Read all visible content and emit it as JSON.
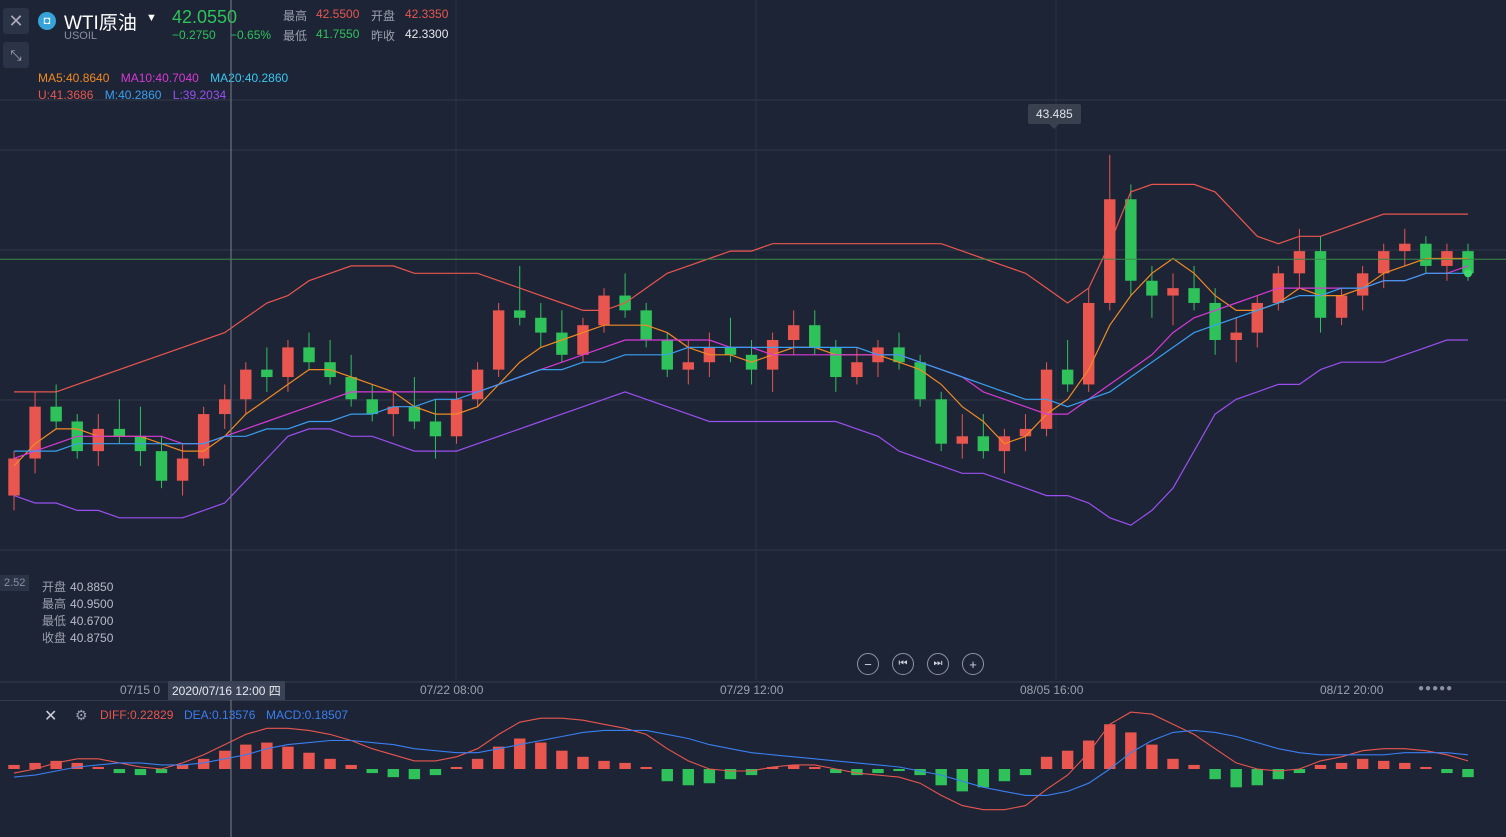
{
  "header": {
    "instrument": "WTI原油",
    "symbol": "USOIL",
    "price": "42.0550",
    "change": "−0.2750",
    "change_pct": "−0.65%",
    "stats": {
      "high_label": "最高",
      "high_value": "42.5500",
      "open_label": "开盘",
      "open_value": "42.3350",
      "low_label": "最低",
      "low_value": "41.7550",
      "prev_label": "昨收",
      "prev_value": "42.3300"
    }
  },
  "legend": {
    "ma5": "MA5:40.8640",
    "ma10": "MA10:40.7040",
    "ma20": "MA20:40.2860",
    "boll_u": "U:41.3686",
    "boll_m": "M:40.2860",
    "boll_l": "L:39.2034"
  },
  "hover_ohlc": {
    "open_label": "开盘",
    "open_value": "40.8850",
    "high_label": "最高",
    "high_value": "40.9500",
    "low_label": "最低",
    "low_value": "40.6700",
    "close_label": "收盘",
    "close_value": "40.8750"
  },
  "price_tag": "43.485",
  "left_axis_tag": "2.52",
  "crosshair_time": "2020/07/16 12:00 四",
  "x_axis": {
    "labels": [
      "07/15 0",
      "07/22 08:00",
      "07/29 12:00",
      "08/05 16:00",
      "08/12 20:00"
    ]
  },
  "macd_legend": {
    "diff": "DIFF:0.22829",
    "dea": "DEA:0.13576",
    "macd": "MACD:0.18507"
  },
  "colors": {
    "up": "#e8564f",
    "down": "#2fc25b",
    "ma5": "#f08a24",
    "ma10": "#d63ad6",
    "ma20": "#3a9ff0",
    "boll_u": "#e8564f",
    "boll_l": "#9a4ff0",
    "diff": "#e8564f",
    "dea": "#3a7ff0"
  },
  "icons": {
    "close": "close-icon",
    "shrink": "shrink-icon",
    "logo": "usoil-logo-icon",
    "zoom_out": "zoom-out-icon",
    "zoom_in": "zoom-in-icon",
    "prev": "step-back-icon",
    "next": "step-forward-icon",
    "settings": "settings-icon"
  },
  "chart_data": {
    "type": "candlestick",
    "title": "",
    "xlabel": "",
    "ylabel": "",
    "ylim": [
      38.2,
      43.6
    ],
    "x_tick_labels": [
      "07/15 0",
      "07/22 08:00",
      "07/29 12:00",
      "08/05 16:00",
      "08/12 20:00"
    ],
    "candles_ohlc": [
      [
        38.8,
        39.4,
        38.6,
        39.3
      ],
      [
        39.3,
        40.2,
        39.1,
        40.0
      ],
      [
        40.0,
        40.3,
        39.7,
        39.8
      ],
      [
        39.8,
        39.9,
        39.3,
        39.4
      ],
      [
        39.4,
        39.9,
        39.2,
        39.7
      ],
      [
        39.7,
        40.1,
        39.5,
        39.6
      ],
      [
        39.6,
        40.0,
        39.2,
        39.4
      ],
      [
        39.4,
        39.6,
        38.9,
        39.0
      ],
      [
        39.0,
        39.5,
        38.8,
        39.3
      ],
      [
        39.3,
        40.0,
        39.2,
        39.9
      ],
      [
        39.9,
        40.3,
        39.7,
        40.1
      ],
      [
        40.1,
        40.6,
        39.9,
        40.5
      ],
      [
        40.5,
        40.8,
        40.2,
        40.4
      ],
      [
        40.4,
        40.9,
        40.2,
        40.8
      ],
      [
        40.8,
        41.0,
        40.5,
        40.6
      ],
      [
        40.6,
        40.9,
        40.3,
        40.4
      ],
      [
        40.4,
        40.7,
        40.0,
        40.1
      ],
      [
        40.1,
        40.3,
        39.8,
        39.9
      ],
      [
        39.9,
        40.2,
        39.6,
        40.0
      ],
      [
        40.0,
        40.4,
        39.7,
        39.8
      ],
      [
        39.8,
        40.1,
        39.3,
        39.6
      ],
      [
        39.6,
        40.2,
        39.5,
        40.1
      ],
      [
        40.1,
        40.6,
        40.0,
        40.5
      ],
      [
        40.5,
        41.4,
        40.4,
        41.3
      ],
      [
        41.3,
        41.9,
        41.1,
        41.2
      ],
      [
        41.2,
        41.4,
        40.8,
        41.0
      ],
      [
        41.0,
        41.3,
        40.6,
        40.7
      ],
      [
        40.7,
        41.2,
        40.6,
        41.1
      ],
      [
        41.1,
        41.6,
        41.0,
        41.5
      ],
      [
        41.5,
        41.8,
        41.2,
        41.3
      ],
      [
        41.3,
        41.4,
        40.8,
        40.9
      ],
      [
        40.9,
        41.0,
        40.4,
        40.5
      ],
      [
        40.5,
        40.9,
        40.3,
        40.6
      ],
      [
        40.6,
        41.0,
        40.4,
        40.8
      ],
      [
        40.8,
        41.2,
        40.6,
        40.7
      ],
      [
        40.7,
        40.9,
        40.3,
        40.5
      ],
      [
        40.5,
        41.0,
        40.2,
        40.9
      ],
      [
        40.9,
        41.3,
        40.7,
        41.1
      ],
      [
        41.1,
        41.3,
        40.7,
        40.8
      ],
      [
        40.8,
        40.9,
        40.2,
        40.4
      ],
      [
        40.4,
        40.8,
        40.3,
        40.6
      ],
      [
        40.6,
        40.9,
        40.4,
        40.8
      ],
      [
        40.8,
        41.0,
        40.5,
        40.6
      ],
      [
        40.6,
        40.7,
        40.0,
        40.1
      ],
      [
        40.1,
        40.2,
        39.4,
        39.5
      ],
      [
        39.5,
        39.9,
        39.3,
        39.6
      ],
      [
        39.6,
        39.9,
        39.3,
        39.4
      ],
      [
        39.4,
        39.7,
        39.1,
        39.6
      ],
      [
        39.6,
        39.9,
        39.4,
        39.7
      ],
      [
        39.7,
        40.6,
        39.6,
        40.5
      ],
      [
        40.5,
        40.9,
        40.2,
        40.3
      ],
      [
        40.3,
        41.6,
        40.2,
        41.4
      ],
      [
        41.4,
        43.4,
        41.3,
        42.8
      ],
      [
        42.8,
        43.0,
        41.5,
        41.7
      ],
      [
        41.7,
        41.9,
        41.2,
        41.5
      ],
      [
        41.5,
        41.8,
        41.1,
        41.6
      ],
      [
        41.6,
        41.9,
        41.3,
        41.4
      ],
      [
        41.4,
        41.6,
        40.7,
        40.9
      ],
      [
        40.9,
        41.2,
        40.6,
        41.0
      ],
      [
        41.0,
        41.5,
        40.8,
        41.4
      ],
      [
        41.4,
        41.9,
        41.3,
        41.8
      ],
      [
        41.8,
        42.4,
        41.6,
        42.1
      ],
      [
        42.1,
        42.3,
        41.0,
        41.2
      ],
      [
        41.2,
        41.6,
        41.1,
        41.5
      ],
      [
        41.5,
        41.9,
        41.3,
        41.8
      ],
      [
        41.8,
        42.2,
        41.6,
        42.1
      ],
      [
        42.1,
        42.4,
        41.9,
        42.2
      ],
      [
        42.2,
        42.3,
        41.8,
        41.9
      ],
      [
        41.9,
        42.2,
        41.7,
        42.1
      ],
      [
        42.1,
        42.2,
        41.7,
        41.8
      ]
    ],
    "series": [
      {
        "name": "MA5",
        "values": [
          39.2,
          39.5,
          39.7,
          39.7,
          39.6,
          39.6,
          39.6,
          39.5,
          39.4,
          39.4,
          39.6,
          39.9,
          40.1,
          40.3,
          40.5,
          40.5,
          40.4,
          40.3,
          40.2,
          40.0,
          39.9,
          39.9,
          40.0,
          40.3,
          40.6,
          40.8,
          40.9,
          41.0,
          41.1,
          41.1,
          41.1,
          41.0,
          40.8,
          40.7,
          40.7,
          40.6,
          40.7,
          40.8,
          40.8,
          40.7,
          40.7,
          40.7,
          40.6,
          40.5,
          40.3,
          40.0,
          39.8,
          39.5,
          39.6,
          39.9,
          40.1,
          40.5,
          41.1,
          41.5,
          41.8,
          42.0,
          41.8,
          41.5,
          41.3,
          41.3,
          41.4,
          41.6,
          41.5,
          41.5,
          41.6,
          41.8,
          41.9,
          42.0,
          42.0,
          42.0
        ]
      },
      {
        "name": "MA10",
        "values": [
          39.3,
          39.4,
          39.5,
          39.6,
          39.6,
          39.6,
          39.6,
          39.6,
          39.5,
          39.5,
          39.6,
          39.7,
          39.8,
          39.9,
          40.0,
          40.1,
          40.2,
          40.2,
          40.2,
          40.2,
          40.2,
          40.2,
          40.2,
          40.3,
          40.4,
          40.5,
          40.6,
          40.7,
          40.8,
          40.9,
          40.9,
          40.9,
          40.9,
          40.9,
          40.8,
          40.8,
          40.7,
          40.7,
          40.7,
          40.7,
          40.7,
          40.7,
          40.7,
          40.6,
          40.5,
          40.4,
          40.2,
          40.1,
          40.0,
          39.9,
          39.9,
          40.1,
          40.3,
          40.5,
          40.7,
          41.0,
          41.2,
          41.3,
          41.4,
          41.5,
          41.6,
          41.6,
          41.6,
          41.6,
          41.6,
          41.7,
          41.7,
          41.8,
          41.8,
          41.9
        ]
      },
      {
        "name": "MA20",
        "values": [
          39.4,
          39.4,
          39.4,
          39.5,
          39.5,
          39.5,
          39.5,
          39.5,
          39.5,
          39.5,
          39.6,
          39.6,
          39.7,
          39.7,
          39.8,
          39.8,
          39.9,
          39.9,
          40.0,
          40.0,
          40.1,
          40.1,
          40.2,
          40.3,
          40.4,
          40.5,
          40.5,
          40.6,
          40.6,
          40.7,
          40.7,
          40.7,
          40.8,
          40.8,
          40.8,
          40.8,
          40.8,
          40.8,
          40.8,
          40.8,
          40.8,
          40.7,
          40.7,
          40.6,
          40.5,
          40.4,
          40.3,
          40.2,
          40.1,
          40.1,
          40.0,
          40.1,
          40.2,
          40.4,
          40.6,
          40.8,
          41.0,
          41.1,
          41.2,
          41.3,
          41.4,
          41.5,
          41.5,
          41.6,
          41.6,
          41.7,
          41.7,
          41.8,
          41.8,
          41.8
        ]
      },
      {
        "name": "U",
        "values": [
          40.2,
          40.2,
          40.2,
          40.3,
          40.4,
          40.5,
          40.6,
          40.7,
          40.8,
          40.9,
          41.0,
          41.2,
          41.4,
          41.5,
          41.7,
          41.8,
          41.9,
          41.9,
          41.9,
          41.8,
          41.8,
          41.8,
          41.8,
          41.7,
          41.6,
          41.5,
          41.4,
          41.3,
          41.3,
          41.4,
          41.6,
          41.8,
          41.9,
          42.0,
          42.1,
          42.1,
          42.2,
          42.2,
          42.2,
          42.2,
          42.2,
          42.2,
          42.2,
          42.2,
          42.2,
          42.1,
          42.0,
          41.9,
          41.8,
          41.6,
          41.4,
          41.6,
          42.2,
          42.9,
          43.0,
          43.0,
          43.0,
          42.9,
          42.6,
          42.3,
          42.2,
          42.3,
          42.3,
          42.4,
          42.5,
          42.6,
          42.6,
          42.6,
          42.6,
          42.6
        ]
      },
      {
        "name": "L",
        "values": [
          38.8,
          38.7,
          38.7,
          38.6,
          38.6,
          38.5,
          38.5,
          38.5,
          38.5,
          38.6,
          38.7,
          39.0,
          39.3,
          39.6,
          39.7,
          39.7,
          39.6,
          39.6,
          39.5,
          39.4,
          39.4,
          39.4,
          39.5,
          39.6,
          39.7,
          39.8,
          39.9,
          40.0,
          40.1,
          40.2,
          40.1,
          40.0,
          39.9,
          39.8,
          39.8,
          39.8,
          39.8,
          39.8,
          39.8,
          39.8,
          39.7,
          39.6,
          39.4,
          39.3,
          39.2,
          39.1,
          39.1,
          39.0,
          38.9,
          38.8,
          38.8,
          38.7,
          38.5,
          38.4,
          38.6,
          38.9,
          39.4,
          39.9,
          40.1,
          40.2,
          40.3,
          40.3,
          40.5,
          40.6,
          40.6,
          40.6,
          40.7,
          40.8,
          40.9,
          40.9
        ]
      }
    ],
    "macd": {
      "histogram": [
        0.02,
        0.03,
        0.04,
        0.03,
        0.01,
        -0.02,
        -0.03,
        -0.02,
        0.02,
        0.05,
        0.09,
        0.12,
        0.13,
        0.11,
        0.08,
        0.05,
        0.02,
        -0.02,
        -0.04,
        -0.05,
        -0.03,
        0.01,
        0.05,
        0.11,
        0.15,
        0.13,
        0.09,
        0.06,
        0.04,
        0.03,
        0.01,
        -0.06,
        -0.08,
        -0.07,
        -0.05,
        -0.03,
        0.01,
        0.02,
        0.01,
        -0.02,
        -0.03,
        -0.02,
        -0.01,
        -0.03,
        -0.08,
        -0.11,
        -0.09,
        -0.06,
        -0.03,
        0.06,
        0.09,
        0.14,
        0.22,
        0.18,
        0.12,
        0.05,
        0.02,
        -0.05,
        -0.09,
        -0.08,
        -0.05,
        -0.02,
        0.02,
        0.03,
        0.05,
        0.04,
        0.03,
        0.01,
        -0.02,
        -0.04
      ],
      "diff": [
        -0.02,
        0.0,
        0.03,
        0.05,
        0.05,
        0.03,
        0.01,
        0.0,
        0.03,
        0.07,
        0.12,
        0.17,
        0.2,
        0.2,
        0.19,
        0.17,
        0.14,
        0.1,
        0.07,
        0.04,
        0.04,
        0.06,
        0.1,
        0.17,
        0.23,
        0.25,
        0.25,
        0.24,
        0.22,
        0.2,
        0.17,
        0.1,
        0.04,
        0.0,
        -0.01,
        -0.01,
        0.01,
        0.02,
        0.02,
        0.0,
        -0.02,
        -0.03,
        -0.04,
        -0.07,
        -0.13,
        -0.18,
        -0.2,
        -0.2,
        -0.18,
        -0.1,
        -0.03,
        0.08,
        0.22,
        0.28,
        0.27,
        0.22,
        0.17,
        0.1,
        0.03,
        0.0,
        -0.01,
        0.0,
        0.04,
        0.06,
        0.09,
        0.1,
        0.1,
        0.09,
        0.07,
        0.04
      ],
      "dea": [
        -0.04,
        -0.03,
        -0.01,
        0.01,
        0.02,
        0.03,
        0.03,
        0.02,
        0.02,
        0.03,
        0.05,
        0.07,
        0.1,
        0.12,
        0.13,
        0.14,
        0.14,
        0.13,
        0.12,
        0.1,
        0.09,
        0.08,
        0.08,
        0.1,
        0.12,
        0.14,
        0.16,
        0.18,
        0.19,
        0.19,
        0.19,
        0.17,
        0.15,
        0.12,
        0.1,
        0.08,
        0.07,
        0.06,
        0.05,
        0.04,
        0.03,
        0.02,
        0.01,
        -0.01,
        -0.03,
        -0.06,
        -0.09,
        -0.11,
        -0.13,
        -0.13,
        -0.11,
        -0.07,
        0.0,
        0.08,
        0.14,
        0.18,
        0.19,
        0.18,
        0.16,
        0.13,
        0.1,
        0.08,
        0.07,
        0.07,
        0.07,
        0.07,
        0.08,
        0.08,
        0.08,
        0.07
      ],
      "ylim": [
        -0.3,
        0.3
      ]
    }
  }
}
